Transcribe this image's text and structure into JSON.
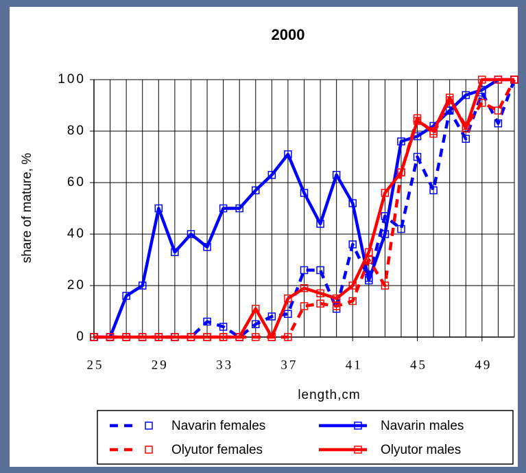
{
  "chart_data": {
    "type": "line",
    "title": "2000",
    "x_label": "length,cm",
    "y_label": "share of mature, %",
    "x": [
      25,
      26,
      27,
      28,
      29,
      30,
      31,
      32,
      33,
      34,
      35,
      36,
      37,
      38,
      39,
      40,
      41,
      42,
      43,
      44,
      45,
      46,
      47,
      48,
      49,
      50,
      51
    ],
    "series": [
      {
        "name": "Navarin females",
        "color": "#0000ff",
        "dash": true,
        "values": [
          0,
          0,
          0,
          0,
          0,
          0,
          0,
          6,
          4,
          0,
          5,
          8,
          9,
          26,
          26,
          11,
          36,
          23,
          47,
          42,
          70,
          57,
          88,
          77,
          95,
          83,
          100
        ]
      },
      {
        "name": "Navarin males",
        "color": "#0000ff",
        "dash": false,
        "values": [
          0,
          0,
          16,
          20,
          50,
          33,
          40,
          35,
          50,
          50,
          57,
          63,
          71,
          56,
          44,
          63,
          52,
          22,
          40,
          76,
          78,
          82,
          88,
          94,
          96,
          100,
          100
        ]
      },
      {
        "name": "Olyutor females",
        "color": "#ff0000",
        "dash": true,
        "values": [
          0,
          0,
          0,
          0,
          0,
          0,
          0,
          0,
          0,
          0,
          0,
          0,
          0,
          12,
          13,
          12,
          14,
          30,
          20,
          64,
          85,
          79,
          92,
          82,
          91,
          88,
          100
        ]
      },
      {
        "name": "Olyutor males",
        "color": "#ff0000",
        "dash": false,
        "values": [
          0,
          0,
          0,
          0,
          0,
          0,
          0,
          0,
          0,
          0,
          11,
          0,
          15,
          19,
          17,
          15,
          20,
          33,
          56,
          64,
          84,
          80,
          93,
          81,
          100,
          100,
          100
        ]
      }
    ],
    "xlim": [
      25,
      51
    ],
    "xticks": [
      25,
      29,
      33,
      37,
      41,
      45,
      49
    ],
    "ylim": [
      0,
      100
    ],
    "yticks": [
      0,
      20,
      40,
      60,
      80,
      100
    ],
    "grid": true
  }
}
